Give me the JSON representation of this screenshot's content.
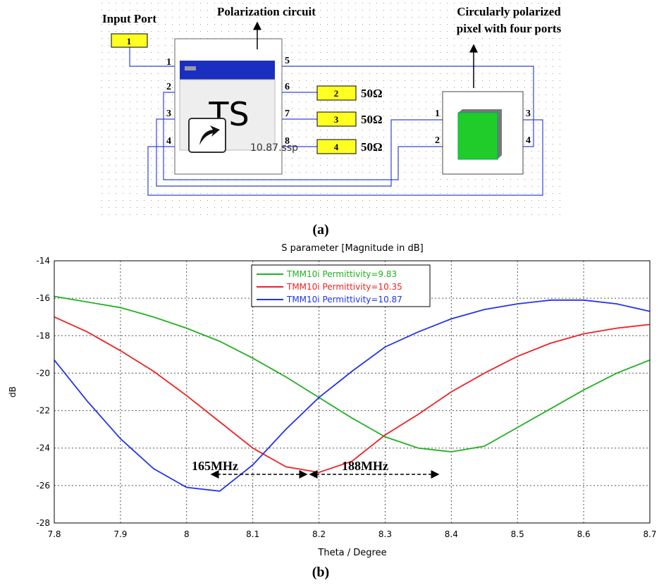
{
  "diagram": {
    "input_label": "Input Port",
    "circuit_label": "Polarization circuit",
    "pixel_label": [
      "Circularly  polarized",
      "pixel with four ports"
    ],
    "ports": [
      "1",
      "2",
      "3",
      "4"
    ],
    "loads": [
      "50Ω",
      "50Ω",
      "50Ω"
    ],
    "circuit_pins": [
      "1",
      "2",
      "3",
      "4",
      "5",
      "6",
      "7",
      "8"
    ],
    "pixel_pins": [
      "1",
      "2",
      "3",
      "4"
    ],
    "block_text": "TS",
    "file_name": "10.87.ssp",
    "caption": "(a)"
  },
  "chart_data": {
    "type": "line",
    "title": "S parameter [Magnitude in dB]",
    "x_label": "Theta / Degree",
    "y_label": "dB",
    "caption": "(b)",
    "x": [
      7.8,
      7.85,
      7.9,
      7.95,
      8.0,
      8.05,
      8.1,
      8.15,
      8.2,
      8.25,
      8.3,
      8.35,
      8.4,
      8.45,
      8.5,
      8.55,
      8.6,
      8.65,
      8.7
    ],
    "series": [
      {
        "name": "TMM10i Permittivity=9.83",
        "color": "#22b022",
        "values": [
          -15.9,
          -16.2,
          -16.5,
          -17.0,
          -17.6,
          -18.3,
          -19.2,
          -20.2,
          -21.3,
          -22.4,
          -23.4,
          -24.0,
          -24.2,
          -23.9,
          -22.9,
          -21.9,
          -20.9,
          -20.0,
          -19.3
        ]
      },
      {
        "name": "TMM10i Permittivity=10.35",
        "color": "#ee2222",
        "values": [
          -17.0,
          -17.8,
          -18.8,
          -19.9,
          -21.2,
          -22.6,
          -24.0,
          -25.0,
          -25.3,
          -24.7,
          -23.3,
          -22.2,
          -21.0,
          -20.0,
          -19.1,
          -18.4,
          -17.9,
          -17.6,
          -17.4
        ]
      },
      {
        "name": "TMM10i Permittivity=10.87",
        "color": "#2233ee",
        "values": [
          -19.3,
          -21.5,
          -23.5,
          -25.1,
          -26.1,
          -26.3,
          -24.9,
          -23.0,
          -21.3,
          -19.9,
          -18.6,
          -17.8,
          -17.1,
          -16.6,
          -16.3,
          -16.1,
          -16.1,
          -16.3,
          -16.7
        ]
      }
    ],
    "xlim": [
      7.8,
      8.7
    ],
    "xticks": [
      7.8,
      7.9,
      8,
      8.1,
      8.2,
      8.3,
      8.4,
      8.5,
      8.6,
      8.7
    ],
    "ylim": [
      -28,
      -14
    ],
    "yticks": [
      -14,
      -16,
      -18,
      -20,
      -22,
      -24,
      -26,
      -28
    ],
    "grid": true,
    "annotations": [
      "165MHz",
      "188MHz"
    ]
  }
}
